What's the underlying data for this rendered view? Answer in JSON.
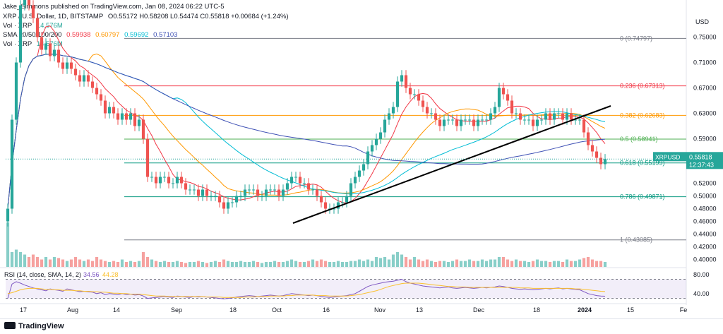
{
  "author": "Jake_Simmons published on TradingView.com, Jan 08, 2024 06:22 UTC-5",
  "header": {
    "symbol": "XRP / U.S. Dollar, 1D, BITSTAMP",
    "ohlc": "O0.55172 H0.58208 L0.54474 C0.55818 +0.00684 (+1.24%)",
    "vol_label": "Vol · XRP",
    "vol_value": "14.576M",
    "sma_label": "SMA 20/50/100/200",
    "sma_values": [
      "0.59938",
      "0.60797",
      "0.59692",
      "0.57103"
    ],
    "vol2_label": "Vol · XRP",
    "vol2_value": "14.576M"
  },
  "currency": "USD",
  "price_tag": {
    "symbol": "XRPUSD",
    "price": "0.55818",
    "countdown": "12:37:43"
  },
  "rsi_header": {
    "label": "RSI (14, close, SMA, 14, 2)",
    "rsi": "34.56",
    "sma": "44.28"
  },
  "footer": {
    "logo": "TradingView"
  },
  "colors": {
    "up": "#26a69a",
    "down": "#ef5350",
    "sma20": "#f23645",
    "sma50": "#ff9800",
    "sma100": "#00bcd4",
    "sma200": "#3f51b5",
    "rsi": "#7e57c2",
    "rsi_sma": "#fbc02d"
  },
  "chart_data": {
    "type": "candlestick",
    "y_axis": {
      "min": 0.4,
      "max": 0.75,
      "ticks": [
        "0.75000",
        "0.71000",
        "0.67000",
        "0.63000",
        "0.59000",
        "0.55000",
        "0.52000",
        "0.50000",
        "0.48000",
        "0.46000",
        "0.44000",
        "0.42000",
        "0.40000"
      ]
    },
    "rsi_axis": {
      "ticks": [
        "80.00",
        "40.00"
      ]
    },
    "x_axis": {
      "labels": [
        "17",
        "Aug",
        "14",
        "Sep",
        "18",
        "Oct",
        "16",
        "Nov",
        "13",
        "Dec",
        "18",
        "2024",
        "15",
        "Fe"
      ]
    },
    "fib_levels": [
      {
        "label": "0 (0.74797)",
        "value": 0.74797,
        "color": "#787b86"
      },
      {
        "label": "0.236 (0.67313)",
        "value": 0.67313,
        "color": "#f23645"
      },
      {
        "label": "0.382 (0.62683)",
        "value": 0.62683,
        "color": "#ff9800"
      },
      {
        "label": "0.5 (0.58941)",
        "value": 0.58941,
        "color": "#4caf50"
      },
      {
        "label": "0.618 (0.55199)",
        "value": 0.55199,
        "color": "#089981"
      },
      {
        "label": "0.786 (0.49871)",
        "value": 0.49871,
        "color": "#089981"
      },
      {
        "label": "1 (0.43085)",
        "value": 0.43085,
        "color": "#787b86"
      }
    ],
    "closes": [
      0.48,
      0.62,
      0.71,
      0.8,
      0.82,
      0.8,
      0.78,
      0.75,
      0.73,
      0.74,
      0.72,
      0.73,
      0.71,
      0.7,
      0.71,
      0.7,
      0.69,
      0.68,
      0.69,
      0.68,
      0.67,
      0.66,
      0.65,
      0.63,
      0.64,
      0.63,
      0.62,
      0.63,
      0.62,
      0.63,
      0.61,
      0.62,
      0.59,
      0.53,
      0.53,
      0.52,
      0.53,
      0.53,
      0.52,
      0.52,
      0.53,
      0.52,
      0.51,
      0.51,
      0.51,
      0.5,
      0.51,
      0.5,
      0.5,
      0.5,
      0.49,
      0.48,
      0.49,
      0.49,
      0.5,
      0.5,
      0.51,
      0.51,
      0.51,
      0.5,
      0.5,
      0.51,
      0.51,
      0.51,
      0.5,
      0.51,
      0.52,
      0.53,
      0.53,
      0.52,
      0.52,
      0.51,
      0.51,
      0.5,
      0.49,
      0.48,
      0.48,
      0.48,
      0.49,
      0.49,
      0.5,
      0.52,
      0.53,
      0.54,
      0.55,
      0.57,
      0.58,
      0.59,
      0.6,
      0.62,
      0.63,
      0.64,
      0.68,
      0.69,
      0.67,
      0.66,
      0.66,
      0.65,
      0.64,
      0.63,
      0.63,
      0.62,
      0.61,
      0.62,
      0.62,
      0.62,
      0.61,
      0.62,
      0.62,
      0.62,
      0.61,
      0.62,
      0.62,
      0.62,
      0.63,
      0.64,
      0.67,
      0.66,
      0.65,
      0.63,
      0.63,
      0.62,
      0.62,
      0.62,
      0.61,
      0.62,
      0.62,
      0.63,
      0.62,
      0.63,
      0.63,
      0.62,
      0.63,
      0.62,
      0.62,
      0.62,
      0.6,
      0.58,
      0.57,
      0.56,
      0.55,
      0.558
    ],
    "volumes": [
      0.9,
      0.3,
      0.35,
      0.3,
      0.25,
      0.2,
      0.25,
      0.2,
      0.15,
      0.2,
      0.15,
      0.2,
      0.18,
      0.15,
      0.12,
      0.15,
      0.2,
      0.15,
      0.12,
      0.15,
      0.12,
      0.2,
      0.15,
      0.12,
      0.1,
      0.12,
      0.1,
      0.15,
      0.1,
      0.12,
      0.1,
      0.12,
      0.3,
      0.2,
      0.15,
      0.12,
      0.1,
      0.12,
      0.1,
      0.1,
      0.12,
      0.1,
      0.08,
      0.1,
      0.1,
      0.12,
      0.1,
      0.08,
      0.1,
      0.12,
      0.1,
      0.15,
      0.12,
      0.1,
      0.1,
      0.12,
      0.1,
      0.1,
      0.12,
      0.1,
      0.08,
      0.1,
      0.1,
      0.12,
      0.1,
      0.1,
      0.12,
      0.15,
      0.12,
      0.1,
      0.1,
      0.12,
      0.15,
      0.12,
      0.15,
      0.12,
      0.1,
      0.1,
      0.12,
      0.1,
      0.1,
      0.12,
      0.12,
      0.15,
      0.12,
      0.15,
      0.12,
      0.2,
      0.18,
      0.2,
      0.15,
      0.25,
      0.3,
      0.25,
      0.2,
      0.15,
      0.2,
      0.15,
      0.12,
      0.15,
      0.12,
      0.1,
      0.12,
      0.12,
      0.1,
      0.12,
      0.15,
      0.12,
      0.12,
      0.15,
      0.12,
      0.12,
      0.15,
      0.12,
      0.15,
      0.15,
      0.2,
      0.2,
      0.15,
      0.12,
      0.15,
      0.12,
      0.12,
      0.1,
      0.12,
      0.15,
      0.12,
      0.12,
      0.1,
      0.12,
      0.12,
      0.1,
      0.15,
      0.12,
      0.12,
      0.15,
      0.18,
      0.2,
      0.15,
      0.12,
      0.12,
      0.1
    ],
    "rsi": [
      30,
      60,
      65,
      62,
      58,
      55,
      52,
      50,
      48,
      46,
      50,
      48,
      47,
      45,
      50,
      48,
      46,
      44,
      45,
      44,
      43,
      40,
      42,
      38,
      40,
      39,
      38,
      40,
      38,
      39,
      37,
      38,
      35,
      30,
      31,
      32,
      33,
      34,
      33,
      32,
      35,
      34,
      33,
      32,
      34,
      33,
      34,
      33,
      32,
      31,
      30,
      29,
      30,
      31,
      33,
      34,
      35,
      36,
      35,
      34,
      35,
      36,
      37,
      36,
      35,
      36,
      38,
      40,
      39,
      38,
      37,
      36,
      37,
      36,
      34,
      33,
      32,
      33,
      34,
      35,
      36,
      38,
      40,
      45,
      50,
      55,
      58,
      60,
      62,
      64,
      65,
      66,
      68,
      70,
      65,
      62,
      60,
      58,
      56,
      55,
      54,
      53,
      52,
      53,
      54,
      52,
      51,
      52,
      53,
      52,
      51,
      52,
      53,
      52,
      53,
      54,
      56,
      55,
      53,
      51,
      50,
      49,
      50,
      49,
      48,
      49,
      50,
      51,
      50,
      51,
      52,
      50,
      51,
      50,
      49,
      48,
      44,
      40,
      38,
      36,
      35,
      34.56
    ],
    "rsi_sma": [
      40,
      42,
      45,
      48,
      50,
      51,
      51,
      51,
      50,
      49,
      49,
      48,
      48,
      47,
      47,
      47,
      46,
      46,
      45,
      45,
      44,
      44,
      43,
      43,
      42,
      41,
      41,
      40,
      40,
      39,
      39,
      39,
      38,
      37,
      36,
      35,
      35,
      35,
      34,
      34,
      34,
      34,
      34,
      34,
      34,
      34,
      34,
      33,
      33,
      33,
      33,
      32,
      32,
      32,
      32,
      32,
      33,
      33,
      33,
      34,
      34,
      34,
      35,
      35,
      35,
      35,
      36,
      36,
      37,
      37,
      37,
      37,
      37,
      36,
      36,
      36,
      35,
      35,
      35,
      35,
      35,
      36,
      37,
      38,
      40,
      42,
      44,
      46,
      49,
      52,
      55,
      57,
      59,
      61,
      62,
      62,
      62,
      62,
      61,
      60,
      59,
      58,
      57,
      56,
      55,
      55,
      54,
      54,
      54,
      53,
      53,
      53,
      53,
      53,
      53,
      53,
      53,
      53,
      53,
      53,
      53,
      52,
      52,
      52,
      51,
      51,
      51,
      51,
      51,
      51,
      51,
      51,
      51,
      51,
      50,
      50,
      49,
      48,
      47,
      46,
      45,
      44.28
    ]
  }
}
